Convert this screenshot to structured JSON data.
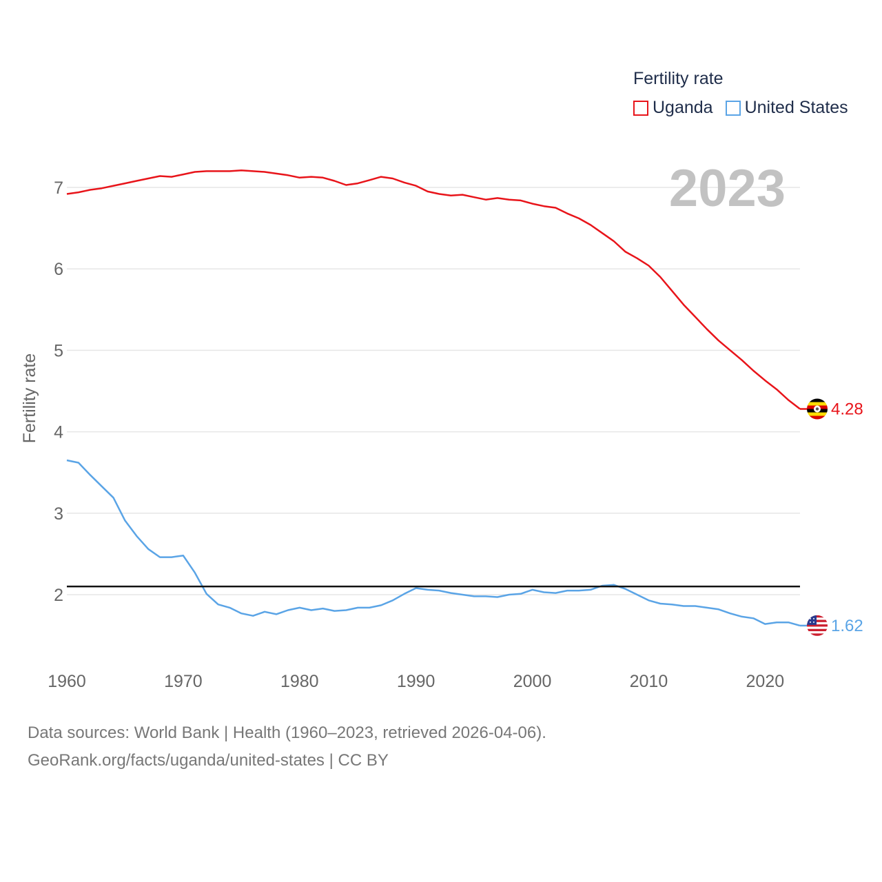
{
  "legend": {
    "title": "Fertility rate",
    "items": [
      {
        "label": "Uganda",
        "color": "#e8141a"
      },
      {
        "label": "United States",
        "color": "#5aa4e6"
      }
    ]
  },
  "year_label": "2023",
  "source": {
    "line1": "Data sources: World Bank | Health (1960–2023, retrieved 2026-04-06).",
    "line2": "GeoRank.org/facts/uganda/united-states | CC BY"
  },
  "chart_data": {
    "type": "line",
    "title": "Fertility rate",
    "xlabel": "",
    "ylabel": "Fertility rate",
    "xlim": [
      1960,
      2023
    ],
    "ylim": [
      1.3,
      7.4
    ],
    "yticks": [
      2,
      3,
      4,
      5,
      6,
      7
    ],
    "xticks": [
      1960,
      1970,
      1980,
      1990,
      2000,
      2010,
      2020
    ],
    "reference_line": {
      "y": 2.1,
      "color": "#111111"
    },
    "x": [
      1960,
      1961,
      1962,
      1963,
      1964,
      1965,
      1966,
      1967,
      1968,
      1969,
      1970,
      1971,
      1972,
      1973,
      1974,
      1975,
      1976,
      1977,
      1978,
      1979,
      1980,
      1981,
      1982,
      1983,
      1984,
      1985,
      1986,
      1987,
      1988,
      1989,
      1990,
      1991,
      1992,
      1993,
      1994,
      1995,
      1996,
      1997,
      1998,
      1999,
      2000,
      2001,
      2002,
      2003,
      2004,
      2005,
      2006,
      2007,
      2008,
      2009,
      2010,
      2011,
      2012,
      2013,
      2014,
      2015,
      2016,
      2017,
      2018,
      2019,
      2020,
      2021,
      2022,
      2023
    ],
    "series": [
      {
        "name": "Uganda",
        "color": "#e8141a",
        "end_label": "4.28",
        "values": [
          6.92,
          6.94,
          6.97,
          6.99,
          7.02,
          7.05,
          7.08,
          7.11,
          7.14,
          7.13,
          7.16,
          7.19,
          7.2,
          7.2,
          7.2,
          7.21,
          7.2,
          7.19,
          7.17,
          7.15,
          7.12,
          7.13,
          7.12,
          7.08,
          7.03,
          7.05,
          7.09,
          7.13,
          7.11,
          7.06,
          7.02,
          6.95,
          6.92,
          6.9,
          6.91,
          6.88,
          6.85,
          6.87,
          6.85,
          6.84,
          6.8,
          6.77,
          6.75,
          6.68,
          6.62,
          6.54,
          6.44,
          6.34,
          6.21,
          6.13,
          6.04,
          5.9,
          5.73,
          5.56,
          5.41,
          5.26,
          5.12,
          5.0,
          4.88,
          4.75,
          4.63,
          4.52,
          4.39,
          4.28
        ]
      },
      {
        "name": "United States",
        "color": "#5aa4e6",
        "end_label": "1.62",
        "values": [
          3.65,
          3.62,
          3.47,
          3.33,
          3.19,
          2.91,
          2.72,
          2.56,
          2.46,
          2.46,
          2.48,
          2.27,
          2.01,
          1.88,
          1.84,
          1.77,
          1.74,
          1.79,
          1.76,
          1.81,
          1.84,
          1.81,
          1.83,
          1.8,
          1.81,
          1.84,
          1.84,
          1.87,
          1.93,
          2.01,
          2.08,
          2.06,
          2.05,
          2.02,
          2.0,
          1.98,
          1.98,
          1.97,
          2.0,
          2.01,
          2.06,
          2.03,
          2.02,
          2.05,
          2.05,
          2.06,
          2.11,
          2.12,
          2.07,
          2.0,
          1.93,
          1.89,
          1.88,
          1.86,
          1.86,
          1.84,
          1.82,
          1.77,
          1.73,
          1.71,
          1.64,
          1.66,
          1.66,
          1.62
        ]
      }
    ]
  }
}
